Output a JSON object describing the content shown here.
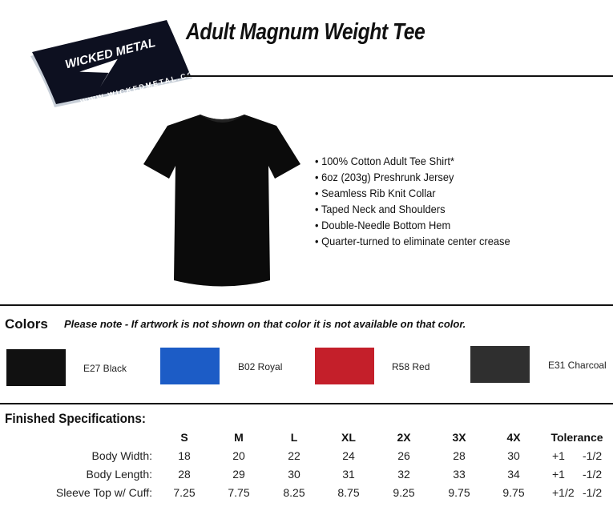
{
  "logo": {
    "text": "WICKED METAL",
    "url": "WWW.WICKEDMETAL.COM"
  },
  "title": "Adult Magnum Weight Tee",
  "features": [
    "100% Cotton Adult Tee Shirt*",
    "6oz (203g) Preshrunk Jersey",
    "Seamless Rib Knit Collar",
    "Taped Neck and Shoulders",
    "Double-Needle Bottom Hem",
    "Quarter-turned to eliminate center crease"
  ],
  "colors": {
    "heading": "Colors",
    "note": "Please note - If artwork is not shown on that color it is not available on that color.",
    "swatches": [
      {
        "label": "E27 Black",
        "hex": "#111111"
      },
      {
        "label": "B02 Royal",
        "hex": "#1c5cc6"
      },
      {
        "label": "R58 Red",
        "hex": "#c41f2a"
      },
      {
        "label": "E31 Charcoal",
        "hex": "#2f2f2f"
      }
    ]
  },
  "specs": {
    "heading": "Finished Specifications:",
    "sizes": [
      "S",
      "M",
      "L",
      "XL",
      "2X",
      "3X",
      "4X"
    ],
    "tolerance_header": "Tolerance",
    "rows": [
      {
        "label": "Body Width:",
        "values": [
          "18",
          "20",
          "22",
          "24",
          "26",
          "28",
          "30"
        ],
        "tol_plus": "+1",
        "tol_minus": "-1/2"
      },
      {
        "label": "Body Length:",
        "values": [
          "28",
          "29",
          "30",
          "31",
          "32",
          "33",
          "34"
        ],
        "tol_plus": "+1",
        "tol_minus": "-1/2"
      },
      {
        "label": "Sleeve Top w/ Cuff:",
        "values": [
          "7.25",
          "7.75",
          "8.25",
          "8.75",
          "9.25",
          "9.75",
          "9.75"
        ],
        "tol_plus": "+1/2",
        "tol_minus": "-1/2"
      }
    ]
  }
}
